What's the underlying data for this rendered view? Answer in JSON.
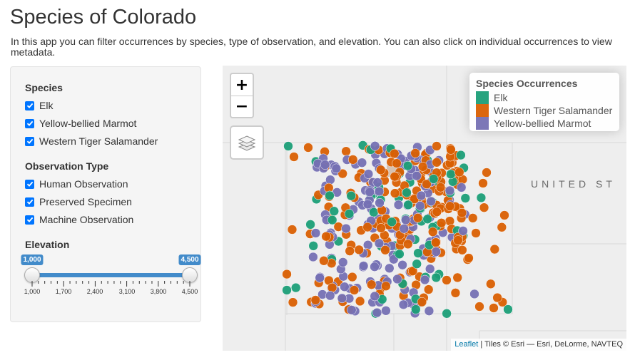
{
  "page": {
    "title": "Species of Colorado",
    "intro": "In this app you can filter occurrences by species, type of observation, and elevation. You can also click on individual occurrences to view metadata."
  },
  "sidebar": {
    "species": {
      "label": "Species",
      "options": [
        {
          "label": "Elk",
          "checked": true
        },
        {
          "label": "Yellow-bellied Marmot",
          "checked": true
        },
        {
          "label": "Western Tiger Salamander",
          "checked": true
        }
      ]
    },
    "observation_type": {
      "label": "Observation Type",
      "options": [
        {
          "label": "Human Observation",
          "checked": true
        },
        {
          "label": "Preserved Specimen",
          "checked": true
        },
        {
          "label": "Machine Observation",
          "checked": true
        }
      ]
    },
    "elevation": {
      "label": "Elevation",
      "min_value": "1,000",
      "max_value": "4,500",
      "tick_labels": [
        "1,000",
        "1,700",
        "2,400",
        "3,100",
        "3,800",
        "4,500"
      ]
    }
  },
  "map": {
    "zoom_in": "+",
    "zoom_out": "−",
    "region_label": "UNITED ST",
    "legend": {
      "title": "Species Occurrences",
      "items": [
        {
          "label": "Elk",
          "color": "#1b9e77"
        },
        {
          "label": "Western Tiger Salamander",
          "color": "#d95f02"
        },
        {
          "label": "Yellow-bellied Marmot",
          "color": "#7570b3"
        }
      ]
    },
    "attribution": {
      "link": "Leaflet",
      "text": " | Tiles © Esri — Esri, DeLorme, NAVTEQ"
    },
    "layers_icon": "layers-icon"
  }
}
